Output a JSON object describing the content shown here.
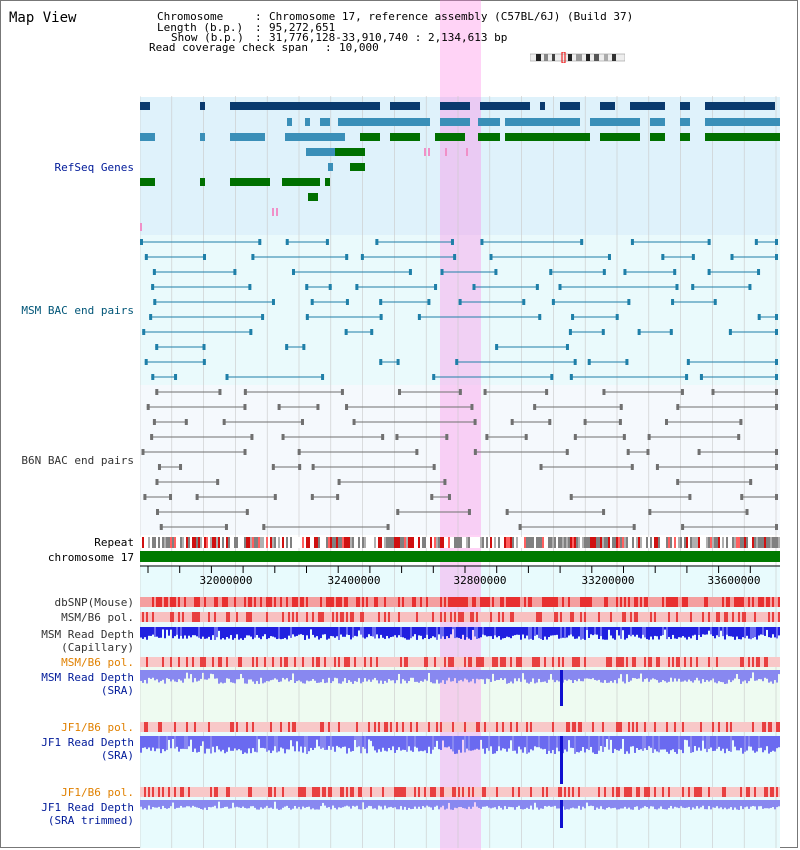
{
  "page_title": "Map View",
  "header": {
    "chromosome_key": "Chromosome",
    "chromosome_val": "Chromosome 17, reference assembly (C57BL/6J) (Build 37)",
    "length_key": "Length (b.p.)",
    "length_val": "95,272,651",
    "show_key": "Show (b.p.)",
    "show_val": "31,776,128-33,910,740 : 2,134,613 bp",
    "coverage_key": "Read coverage check span",
    "coverage_val": "10,000"
  },
  "tracks": {
    "refseq": "RefSeq Genes",
    "msm_bac": "MSM BAC end pairs",
    "b6n_bac": "B6N BAC end pairs",
    "repeat": "Repeat",
    "chromosome": "chromosome 17",
    "dbsnp": "dbSNP(Mouse)",
    "msm_b6_pol_1": "MSM/B6 pol.",
    "msm_read_depth_cap_1": "MSM Read Depth",
    "msm_read_depth_cap_2": "(Capillary)",
    "msm_b6_pol_2": "MSM/B6 pol.",
    "msm_read_depth_sra_1": "MSM Read Depth",
    "msm_read_depth_sra_2": "(SRA)",
    "jf1_b6_pol_1": "JF1/B6 pol.",
    "jf1_read_depth_sra_1": "JF1 Read Depth",
    "jf1_read_depth_sra_2": "(SRA)",
    "jf1_b6_pol_2": "JF1/B6 pol.",
    "jf1_read_depth_trim_1": "JF1 Read Depth",
    "jf1_read_depth_trim_2": "(SRA trimmed)"
  },
  "axis_ticks": [
    "32000000",
    "32400000",
    "32800000",
    "33200000",
    "33600000"
  ],
  "colors": {
    "refseq_bg": "#dff2fb",
    "msm_bg": "#eafafc",
    "b6n_bg": "#f5f9fd",
    "highlight": "#ff82e6",
    "chromosome_bar": "#007a00"
  }
}
